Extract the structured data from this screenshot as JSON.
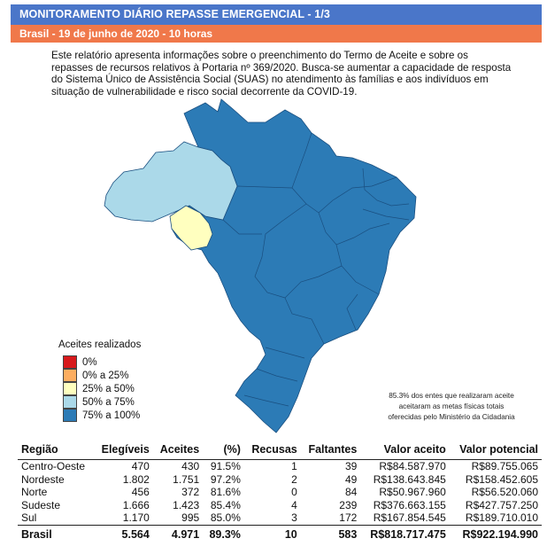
{
  "header": {
    "title": "MONITORAMENTO DIÁRIO REPASSE EMERGENCIAL - 1/3",
    "subtitle": "Brasil - 19 de junho de 2020 - 10 horas"
  },
  "intro_text": "Este relatório apresenta informações sobre o preenchimento do Termo de Aceite e sobre os repasses de recursos relativos à Portaria nº 369/2020. Busca-se aumentar a capacidade de resposta do Sistema Único de Assistência Social (SUAS) no atendimento às famílias e aos indivíduos em situação de vulnerabilidade e risco social decorrente da COVID-19.",
  "legend": {
    "title": "Aceites realizados",
    "items": [
      {
        "label": "0%",
        "color": "#d7191c"
      },
      {
        "label": "0% a 25%",
        "color": "#fdae61"
      },
      {
        "label": "25% a 50%",
        "color": "#ffffbf"
      },
      {
        "label": "50% a 75%",
        "color": "#abd9e9"
      },
      {
        "label": "75% a 100%",
        "color": "#2c7bb6"
      }
    ]
  },
  "map": {
    "states": [
      {
        "region": "norte",
        "class": "50% a 75%",
        "color": "#abd9e9"
      },
      {
        "region": "rondonia",
        "class": "25% a 50%",
        "color": "#ffffbf"
      },
      {
        "region": "rest",
        "class": "75% a 100%",
        "color": "#2c7bb6"
      }
    ]
  },
  "note": {
    "line1": "85.3% dos entes que realizaram aceite",
    "line2": "aceitaram as metas físicas totais",
    "line3": "oferecidas pelo Ministério da Cidadania"
  },
  "table": {
    "headers": [
      "Região",
      "Elegíveis",
      "Aceites",
      "(%)",
      "Recusas",
      "Faltantes",
      "Valor aceito",
      "Valor potencial"
    ],
    "rows": [
      [
        "Centro-Oeste",
        "470",
        "430",
        "91.5%",
        "1",
        "39",
        "R$84.587.970",
        "R$89.755.065"
      ],
      [
        "Nordeste",
        "1.802",
        "1.751",
        "97.2%",
        "2",
        "49",
        "R$138.643.845",
        "R$158.452.605"
      ],
      [
        "Norte",
        "456",
        "372",
        "81.6%",
        "0",
        "84",
        "R$50.967.960",
        "R$56.520.060"
      ],
      [
        "Sudeste",
        "1.666",
        "1.423",
        "85.4%",
        "4",
        "239",
        "R$376.663.155",
        "R$427.757.250"
      ],
      [
        "Sul",
        "1.170",
        "995",
        "85.0%",
        "3",
        "172",
        "R$167.854.545",
        "R$189.710.010"
      ]
    ],
    "total": [
      "Brasil",
      "5.564",
      "4.971",
      "89.3%",
      "10",
      "583",
      "R$818.717.475",
      "R$922.194.990"
    ]
  }
}
